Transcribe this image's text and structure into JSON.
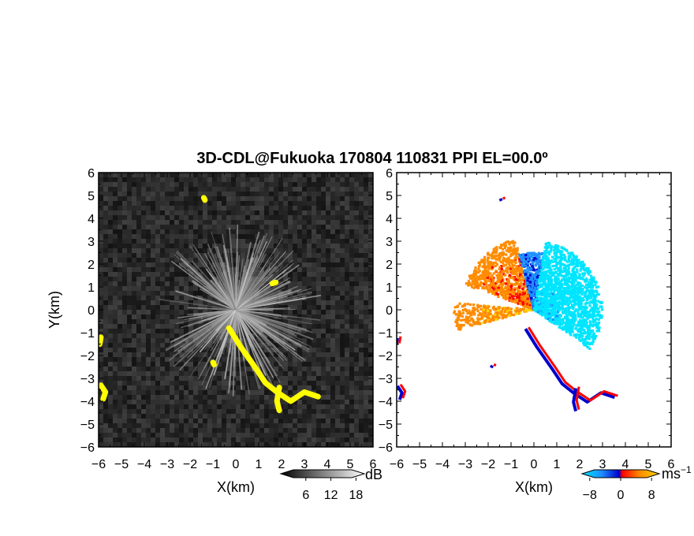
{
  "title": "3D-CDL@Fukuoka 170804 110831 PPI EL=00.0º",
  "chart_data": [
    {
      "type": "heatmap",
      "panel": "left",
      "xlabel": "X(km)",
      "ylabel": "Y(km)",
      "xlim": [
        -6,
        6
      ],
      "ylim": [
        -6,
        6
      ],
      "x_ticks": [
        "-6",
        "-5",
        "-4",
        "-3",
        "-2",
        "-1",
        "0",
        "1",
        "2",
        "3",
        "4",
        "5",
        "6"
      ],
      "y_ticks": [
        "-6",
        "-5",
        "-4",
        "-3",
        "-2",
        "-1",
        "0",
        "1",
        "2",
        "3",
        "4",
        "5",
        "6"
      ],
      "colorbar": {
        "label": "dB",
        "ticks": [
          "6",
          "12",
          "18"
        ],
        "range": [
          0,
          20
        ],
        "colors": [
          "#000000",
          "#ffffff"
        ]
      },
      "highlight_color": "#ffff00",
      "highlight_regions": [
        {
          "name": "coast-streak",
          "points": [
            [
              -0.3,
              -0.8
            ],
            [
              0.2,
              -1.6
            ],
            [
              0.9,
              -2.6
            ],
            [
              1.3,
              -3.2
            ],
            [
              1.8,
              -3.6
            ],
            [
              2.4,
              -4.0
            ],
            [
              3.0,
              -3.6
            ],
            [
              3.6,
              -3.8
            ]
          ]
        },
        {
          "name": "left-edge-lower",
          "points": [
            [
              -5.9,
              -3.3
            ],
            [
              -5.7,
              -3.6
            ],
            [
              -5.8,
              -3.9
            ]
          ]
        },
        {
          "name": "left-edge-upper",
          "points": [
            [
              -5.9,
              -1.2
            ],
            [
              -5.95,
              -1.5
            ]
          ]
        },
        {
          "name": "south-branch",
          "points": [
            [
              1.9,
              -3.4
            ],
            [
              1.8,
              -4.0
            ],
            [
              1.9,
              -4.4
            ]
          ]
        },
        {
          "name": "small-spot-a",
          "points": [
            [
              -1.4,
              4.9
            ],
            [
              -1.35,
              4.8
            ]
          ]
        },
        {
          "name": "small-spot-b",
          "points": [
            [
              -1.0,
              -2.3
            ],
            [
              -0.95,
              -2.4
            ]
          ]
        },
        {
          "name": "small-spot-c",
          "points": [
            [
              1.6,
              1.15
            ],
            [
              1.75,
              1.2
            ]
          ]
        }
      ]
    },
    {
      "type": "heatmap",
      "panel": "right",
      "xlabel": "X(km)",
      "xlim": [
        -6,
        6
      ],
      "ylim": [
        -6,
        6
      ],
      "x_ticks": [
        "-6",
        "-5",
        "-4",
        "-3",
        "-2",
        "-1",
        "0",
        "1",
        "2",
        "3",
        "4",
        "5",
        "6"
      ],
      "y_ticks": [
        "-6",
        "-5",
        "-4",
        "-3",
        "-2",
        "-1",
        "0",
        "1",
        "2",
        "3",
        "4",
        "5",
        "6"
      ],
      "colorbar": {
        "label": "ms",
        "label_sup": "−1",
        "ticks": [
          "−8",
          "0",
          "8"
        ],
        "range": [
          -10,
          10
        ],
        "colors": [
          "#00e5ff",
          "#1e90ff",
          "#0000cd",
          "#ff0000",
          "#ff8c00",
          "#ffd700"
        ]
      },
      "velocity_sectors": [
        {
          "name": "west-fan",
          "azimuth_deg": [
            255,
            275
          ],
          "range_km": [
            0,
            3.5
          ],
          "velocity": 6
        },
        {
          "name": "northwest-fan",
          "azimuth_deg": [
            290,
            345
          ],
          "range_km": [
            0,
            3.2
          ],
          "velocity": 4
        },
        {
          "name": "north-near",
          "azimuth_deg": [
            345,
            10
          ],
          "range_km": [
            0,
            2.5
          ],
          "velocity": -4
        },
        {
          "name": "east-fan",
          "azimuth_deg": [
            10,
            125
          ],
          "range_km": [
            0,
            3.0
          ],
          "velocity": -8
        }
      ],
      "edge_points": [
        {
          "name": "coast-streak",
          "points": [
            [
              -0.3,
              -0.8
            ],
            [
              0.2,
              -1.6
            ],
            [
              0.9,
              -2.6
            ],
            [
              1.3,
              -3.2
            ],
            [
              1.8,
              -3.6
            ],
            [
              2.4,
              -4.0
            ],
            [
              3.0,
              -3.6
            ],
            [
              3.6,
              -3.8
            ]
          ]
        },
        {
          "name": "left-edge-lower",
          "points": [
            [
              -5.9,
              -3.3
            ],
            [
              -5.7,
              -3.6
            ],
            [
              -5.8,
              -3.9
            ]
          ]
        },
        {
          "name": "left-edge-upper",
          "points": [
            [
              -5.9,
              -1.2
            ],
            [
              -5.95,
              -1.5
            ]
          ]
        },
        {
          "name": "south-branch",
          "points": [
            [
              1.9,
              -3.4
            ],
            [
              1.8,
              -4.0
            ],
            [
              1.9,
              -4.4
            ]
          ]
        },
        {
          "name": "north-spot",
          "points": [
            [
              -1.4,
              4.9
            ],
            [
              -1.35,
              4.8
            ]
          ]
        },
        {
          "name": "southwest-spot",
          "points": [
            [
              -1.8,
              -2.5
            ],
            [
              -1.75,
              -2.4
            ]
          ]
        }
      ]
    }
  ]
}
